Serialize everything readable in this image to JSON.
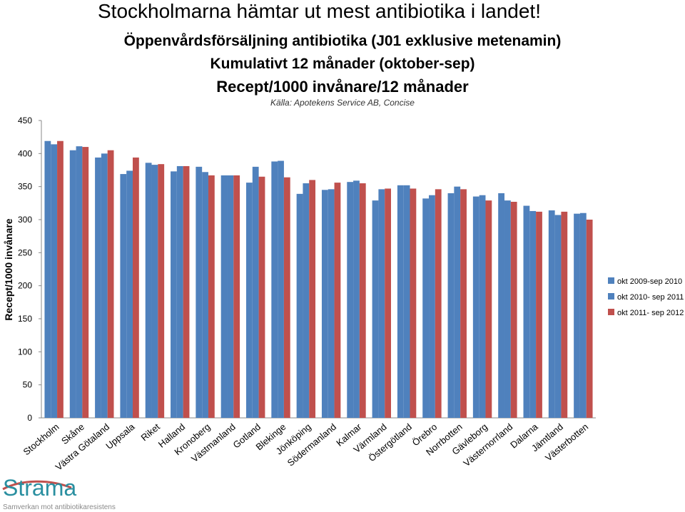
{
  "slide_title": "Stockholmarna hämtar ut mest antibiotika i landet!",
  "subtitle_lines": [
    "Öppenvårdsförsäljning antibiotika (J01 exklusive metenamin)",
    "Kumulativt 12 månader (oktober-sep)",
    "Recept/1000 invånare/12 månader"
  ],
  "source_note": "Källa: Apotekens Service AB, Concise",
  "logo": {
    "name": "Strama",
    "tagline": "Samverkan mot antibiotikaresistens",
    "color": "#2a8fa0"
  },
  "chart_data": {
    "type": "bar",
    "ylabel": "Recept/1000 invånare",
    "ylim": [
      0,
      450
    ],
    "yticks": [
      0,
      50,
      100,
      150,
      200,
      250,
      300,
      350,
      400,
      450
    ],
    "grid": false,
    "legend": "right",
    "categories": [
      "Stockholm",
      "Skåne",
      "Västra Götaland",
      "Uppsala",
      "Riket",
      "Halland",
      "Kronoberg",
      "Västmanland",
      "Gotland",
      "Blekinge",
      "Jönköping",
      "Södermanland",
      "Kalmar",
      "Värmland",
      "Östergötland",
      "Örebro",
      "Norrbotten",
      "Gävleborg",
      "Västernorrland",
      "Dalarna",
      "Jämtland",
      "Västerbotten"
    ],
    "series": [
      {
        "name": "okt 2009-sep 2010",
        "color": "#4f81bd",
        "values": [
          419,
          405,
          394,
          369,
          386,
          373,
          380,
          367,
          356,
          388,
          339,
          345,
          357,
          329,
          352,
          332,
          340,
          335,
          340,
          321,
          314,
          309
        ]
      },
      {
        "name": "okt 2010- sep 2011",
        "color": "#4f81bd",
        "values": [
          414,
          411,
          400,
          374,
          383,
          381,
          372,
          367,
          380,
          389,
          355,
          346,
          359,
          346,
          352,
          337,
          350,
          337,
          329,
          313,
          307,
          310
        ]
      },
      {
        "name": "okt 2011- sep 2012",
        "color": "#c0504d",
        "values": [
          419,
          410,
          405,
          394,
          384,
          381,
          367,
          367,
          365,
          364,
          360,
          356,
          355,
          347,
          347,
          346,
          346,
          329,
          327,
          312,
          312,
          300
        ]
      }
    ]
  }
}
